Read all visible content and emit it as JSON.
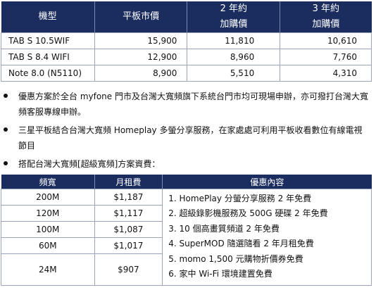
{
  "price_table": {
    "headers": [
      {
        "line1": "機型",
        "line2": ""
      },
      {
        "line1": "平板市價",
        "line2": ""
      },
      {
        "line1": "2 年約",
        "line2": "加購價"
      },
      {
        "line1": "3 年約",
        "line2": "加購價"
      }
    ],
    "rows": [
      {
        "model": "TAB S 10.5WIF",
        "price": "15,900",
        "y2": "11,810",
        "y3": "10,610"
      },
      {
        "model": "TAB S 8.4 WIFI",
        "price": "12,900",
        "y2": "8,960",
        "y3": "7,760"
      },
      {
        "model": "Note 8.0 (N5110)",
        "price": "8,900",
        "y2": "5,510",
        "y3": "4,310"
      }
    ]
  },
  "bullets": [
    "優惠方案於全台 myfone 門市及台灣大寬頻旗下系統台門市均可現場申辦，亦可撥打台灣大寬頻客服專線申辦。",
    "三星平板結合台灣大寬頻 Homeplay 多螢分享服務，在家處處可利用平板收看數位有線電視節目",
    "搭配台灣大寬頻[超級寬頻]方案資費："
  ],
  "plan_table": {
    "headers": [
      "頻寬",
      "月租費",
      "優惠內容"
    ],
    "rows": [
      {
        "bandwidth": "200M",
        "fee": "$1,187"
      },
      {
        "bandwidth": "120M",
        "fee": "$1,117"
      },
      {
        "bandwidth": "100M",
        "fee": "$1,087"
      },
      {
        "bandwidth": "60M",
        "fee": "$1,017"
      },
      {
        "bandwidth": "24M",
        "fee": "$907"
      }
    ],
    "benefits": [
      "1. HomePlay 分螢分享服務 2 年免費",
      "2. 超級錄影機服務及 500G 硬碟 2 年免費",
      "3. 10 個高畫質頻道 2 年免費",
      "4. SuperMOD 隨選隨看 2 年月租免費",
      "5. momo 1,500 元購物折價券免費",
      "6. 家中 Wi-Fi 環境建置免費"
    ]
  }
}
